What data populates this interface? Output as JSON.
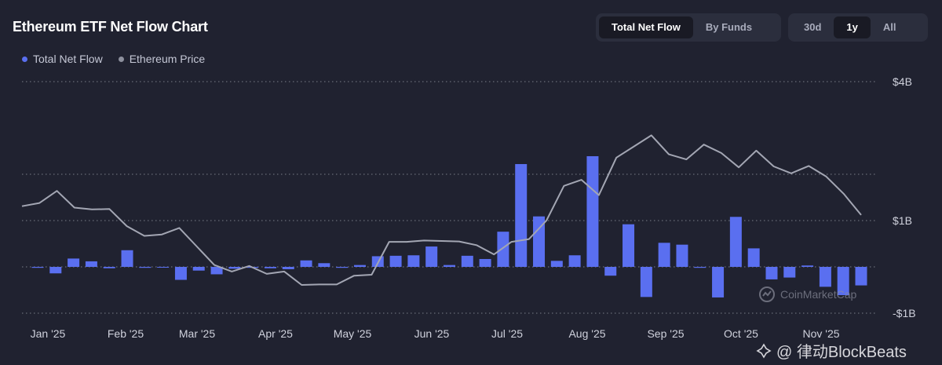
{
  "header": {
    "title": "Ethereum ETF Net Flow Chart"
  },
  "legend": {
    "net_flow_label": "Total Net Flow",
    "price_label": "Ethereum Price"
  },
  "view_toggle": {
    "options": [
      "Total Net Flow",
      "By Funds"
    ],
    "selected": "Total Net Flow"
  },
  "range_toggle": {
    "options": [
      "30d",
      "1y",
      "All"
    ],
    "selected": "1y"
  },
  "colors": {
    "background": "#202230",
    "bar": "#5a6ff0",
    "price_line": "#a3a6b3",
    "grid": "#8a8d99"
  },
  "watermarks": {
    "coinmarketcap": "CoinMarketCap",
    "blockbeats": "@ 律动BlockBeats"
  },
  "chart_data": {
    "type": "bar",
    "title": "Ethereum ETF Net Flow Chart",
    "x_tick_labels": [
      "Jan '25",
      "Feb '25",
      "Mar '25",
      "Apr '25",
      "May '25",
      "Jun '25",
      "Jul '25",
      "Aug '25",
      "Sep '25",
      "Oct '25",
      "Nov '25"
    ],
    "y_tick_labels": [
      "$4B",
      "$1B",
      "-$1B"
    ],
    "y_ticks": [
      4,
      2,
      1,
      0,
      -1
    ],
    "ylim": [
      -1,
      4
    ],
    "grid": true,
    "legend_position": "top-left",
    "series": [
      {
        "name": "Total Net Flow",
        "type": "bar",
        "unit": "USD billions",
        "values": [
          -0.02,
          -0.14,
          0.18,
          0.12,
          -0.03,
          0.36,
          -0.02,
          -0.01,
          -0.28,
          -0.08,
          -0.16,
          -0.04,
          -0.02,
          -0.03,
          -0.05,
          0.14,
          0.08,
          -0.02,
          0.04,
          0.23,
          0.24,
          0.25,
          0.44,
          0.04,
          0.24,
          0.17,
          0.76,
          2.22,
          1.09,
          0.13,
          0.25,
          2.39,
          -0.19,
          0.92,
          -0.65,
          0.52,
          0.48,
          -0.02,
          -0.66,
          1.08,
          0.4,
          -0.27,
          -0.23,
          0.03,
          -0.43,
          -0.61,
          -0.4
        ]
      },
      {
        "name": "Ethereum Price",
        "type": "line",
        "unit": "relative scale",
        "values": [
          1.31,
          1.38,
          1.64,
          1.28,
          1.24,
          1.25,
          0.88,
          0.67,
          0.7,
          0.84,
          0.44,
          0.04,
          -0.1,
          0.02,
          -0.15,
          -0.1,
          -0.39,
          -0.38,
          -0.38,
          -0.19,
          -0.17,
          0.54,
          0.54,
          0.57,
          0.56,
          0.55,
          0.47,
          0.27,
          0.54,
          0.6,
          1.0,
          1.75,
          1.88,
          1.55,
          2.36,
          2.6,
          2.84,
          2.43,
          2.32,
          2.64,
          2.46,
          2.15,
          2.51,
          2.17,
          2.02,
          2.18,
          1.95,
          1.58,
          1.12
        ]
      }
    ]
  }
}
